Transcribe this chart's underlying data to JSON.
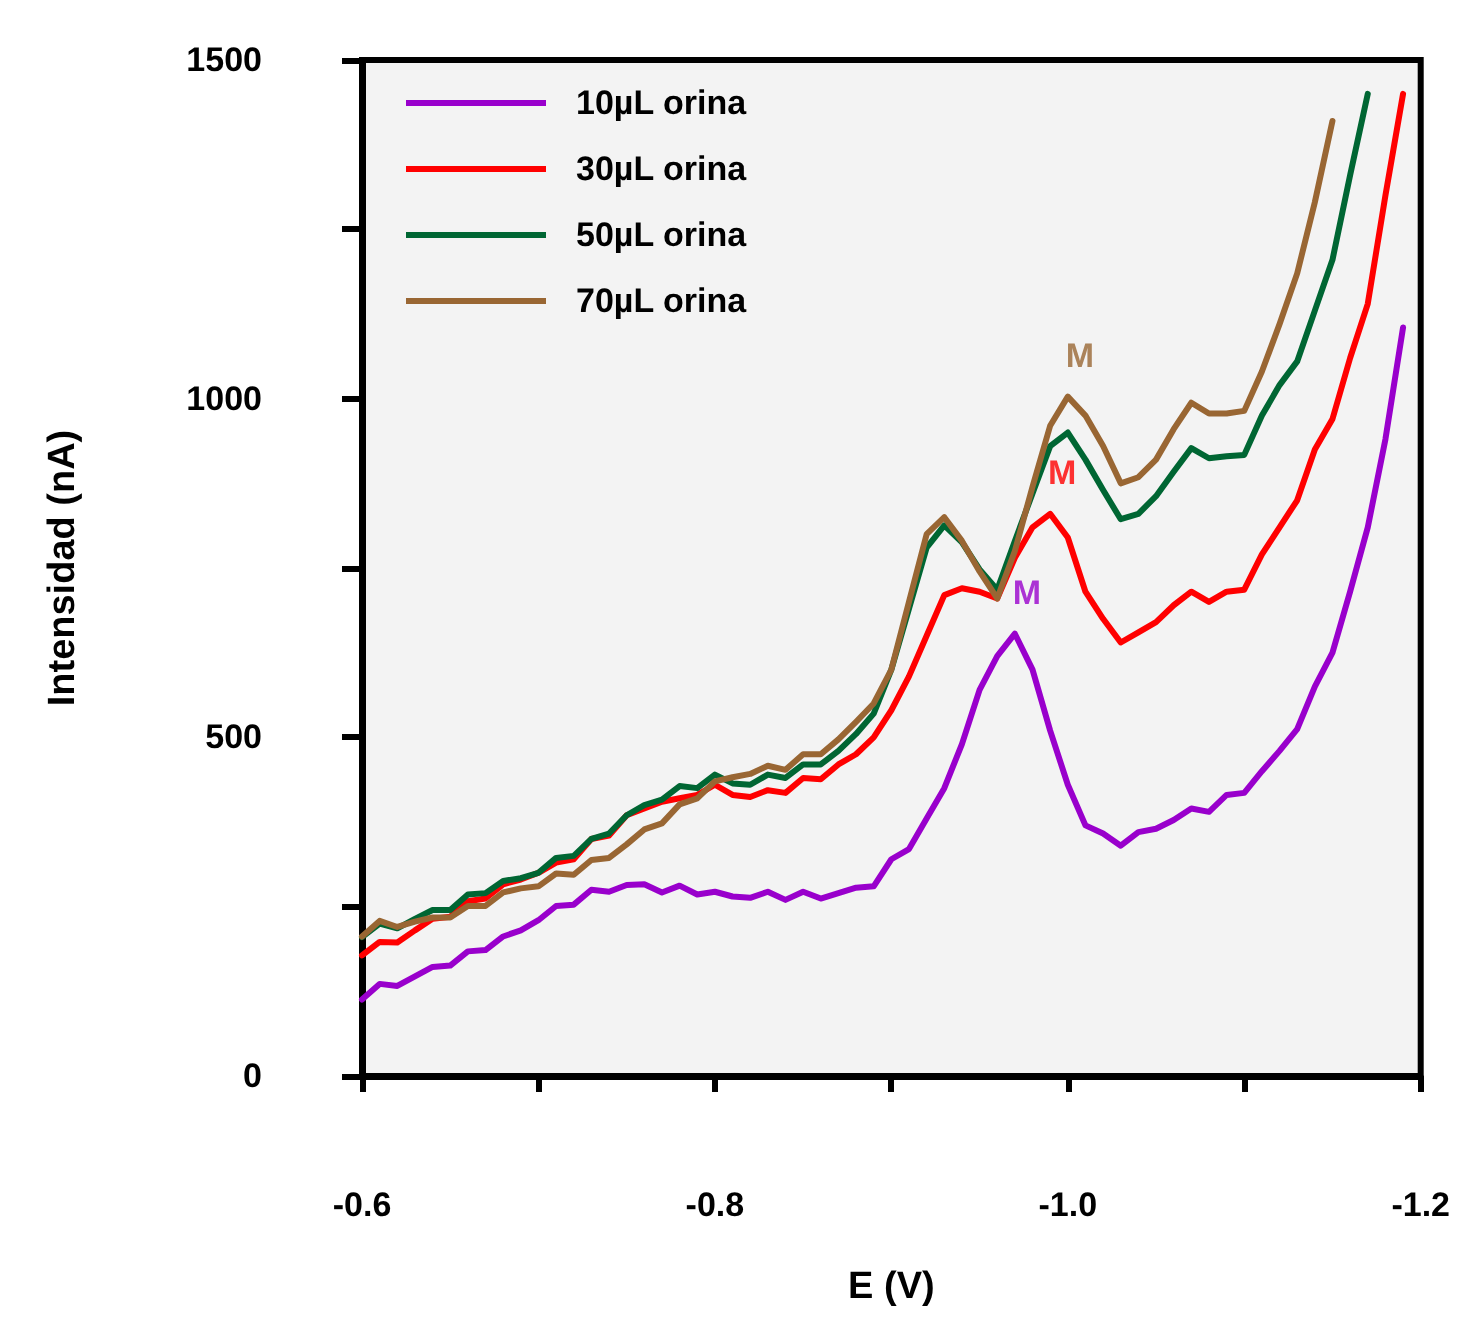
{
  "chart_data": {
    "type": "line",
    "xlabel": "E (V)",
    "ylabel": "Intensidad (nA)",
    "x": [
      -0.6,
      -0.61,
      -0.62,
      -0.63,
      -0.64,
      -0.65,
      -0.66,
      -0.67,
      -0.68,
      -0.69,
      -0.7,
      -0.71,
      -0.72,
      -0.73,
      -0.74,
      -0.75,
      -0.76,
      -0.77,
      -0.78,
      -0.79,
      -0.8,
      -0.81,
      -0.82,
      -0.83,
      -0.84,
      -0.85,
      -0.86,
      -0.87,
      -0.88,
      -0.89,
      -0.9,
      -0.91,
      -0.92,
      -0.93,
      -0.94,
      -0.95,
      -0.96,
      -0.97,
      -0.98,
      -0.99,
      -1.0,
      -1.01,
      -1.02,
      -1.03,
      -1.04,
      -1.05,
      -1.06,
      -1.07,
      -1.08,
      -1.09,
      -1.1,
      -1.11,
      -1.12,
      -1.13,
      -1.14,
      -1.15,
      -1.16,
      -1.17,
      -1.18,
      -1.19
    ],
    "series": [
      {
        "name": "10µL orina",
        "color": "#9900cc",
        "values": [
          113,
          136,
          133,
          147,
          161,
          163,
          184,
          186,
          206,
          215,
          230,
          251,
          253,
          275,
          272,
          282,
          283,
          271,
          281,
          268,
          272,
          265,
          263,
          272,
          260,
          272,
          262,
          270,
          278,
          280,
          320,
          335,
          380,
          425,
          490,
          570,
          620,
          653,
          600,
          510,
          430,
          370,
          358,
          340,
          360,
          365,
          378,
          395,
          390,
          415,
          418,
          450,
          480,
          512,
          575,
          625,
          715,
          810,
          940,
          1105
        ]
      },
      {
        "name": "30µL orina",
        "color": "#ff0000",
        "values": [
          178,
          198,
          197,
          215,
          232,
          235,
          258,
          262,
          283,
          290,
          300,
          315,
          320,
          350,
          355,
          385,
          395,
          405,
          410,
          415,
          430,
          415,
          412,
          422,
          418,
          440,
          438,
          460,
          475,
          500,
          540,
          590,
          650,
          710,
          720,
          715,
          705,
          765,
          810,
          830,
          795,
          715,
          675,
          640,
          655,
          670,
          695,
          715,
          700,
          715,
          718,
          770,
          810,
          850,
          925,
          970,
          1060,
          1140,
          1300,
          1450
        ]
      },
      {
        "name": "50µL orina",
        "color": "#006633",
        "values": [
          205,
          225,
          218,
          232,
          245,
          245,
          268,
          270,
          288,
          292,
          300,
          322,
          325,
          350,
          358,
          385,
          400,
          408,
          428,
          425,
          445,
          432,
          430,
          445,
          440,
          460,
          460,
          480,
          505,
          535,
          600,
          690,
          780,
          813,
          788,
          748,
          718,
          790,
          860,
          930,
          950,
          910,
          865,
          822,
          830,
          856,
          892,
          927,
          912,
          915,
          917,
          975,
          1020,
          1055,
          1130,
          1205,
          1330,
          1450,
          null,
          null
        ]
      },
      {
        "name": "70µL orina",
        "color": "#996633",
        "values": [
          206,
          229,
          220,
          228,
          234,
          234,
          251,
          251,
          271,
          277,
          280,
          299,
          297,
          319,
          322,
          342,
          364,
          373,
          401,
          410,
          435,
          441,
          446,
          458,
          452,
          475,
          475,
          497,
          523,
          550,
          600,
          700,
          800,
          825,
          790,
          745,
          705,
          775,
          870,
          960,
          1003,
          975,
          930,
          875,
          884,
          910,
          955,
          994,
          978,
          978,
          982,
          1040,
          1110,
          1185,
          1290,
          1410,
          null,
          null,
          null,
          null
        ]
      }
    ],
    "annotations": [
      {
        "text": "M",
        "x": -0.97,
        "y": 653
      },
      {
        "text": "M",
        "x": -0.99,
        "y": 830
      },
      {
        "text": "M",
        "x": -1.0,
        "y": 1003
      }
    ],
    "xlim": [
      -0.6,
      -1.2
    ],
    "xticks": [
      -0.6,
      {
        "value": -0.7,
        "label": null
      },
      -0.8,
      {
        "value": -0.9,
        "label": null
      },
      {
        "value": -1.0,
        "label": "-1.0"
      },
      {
        "value": -1.1,
        "label": null
      },
      -1.2
    ],
    "ylim": [
      0,
      1500
    ],
    "yticks": [
      0,
      {
        "value": 250,
        "label": null
      },
      500,
      {
        "value": 750,
        "label": null
      },
      1000,
      {
        "value": 1250,
        "label": null
      },
      1500
    ],
    "legend": "top left",
    "grid": false,
    "marker": "none",
    "line_style": "solid"
  }
}
